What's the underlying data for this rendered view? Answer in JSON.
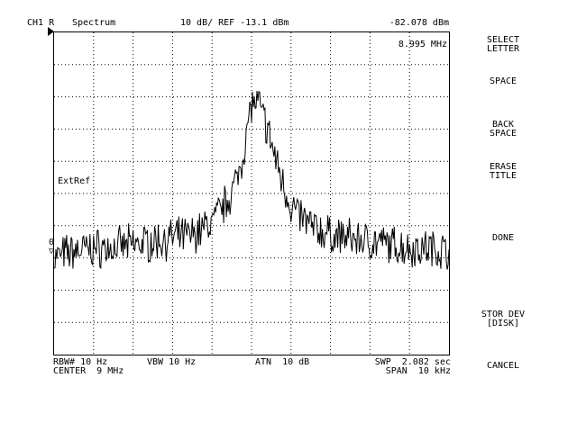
{
  "header": {
    "channel": "CH1 R",
    "mode": "Spectrum",
    "scale_ref": "10 dB/ REF -13.1 dBm",
    "marker_value": "-82.078 dBm"
  },
  "screen": {
    "marker_freq": "8.995 MHz",
    "ext_ref": "ExtRef",
    "level_marker": "0"
  },
  "footer": {
    "rbw": "RBW# 10 Hz",
    "vbw": "VBW 10 Hz",
    "atn": "ATN  10 dB",
    "swp": "SWP  2.082 sec",
    "center": "CENTER  9 MHz",
    "span": "SPAN  10 kHz"
  },
  "softkeys": {
    "select_letter": "SELECT\nLETTER",
    "space": "SPACE",
    "back_space": "BACK\nSPACE",
    "erase_title": "ERASE\nTITLE",
    "done": "DONE",
    "stor_dev": "STOR DEV\n[DISK]",
    "cancel": "CANCEL"
  },
  "chart_data": {
    "type": "line",
    "xlabel": "",
    "ylabel": "",
    "x_range_mhz": [
      8.995,
      9.005
    ],
    "ylim_dbm": [
      -113.1,
      -13.1
    ],
    "grid": true,
    "series": [
      {
        "x_mhz": [
          8.995,
          8.9955,
          8.996,
          8.9965,
          8.997,
          8.9975,
          8.998,
          8.9985,
          8.999,
          8.9993,
          8.9996,
          8.9998,
          9.0,
          9.0002,
          9.0004,
          9.0006,
          9.0008,
          9.001,
          9.0013,
          9.0016,
          9.002,
          9.0025,
          9.003,
          9.0035,
          9.004,
          9.0045,
          9.005
        ],
        "y_dbm": [
          -83,
          -81,
          -80,
          -80,
          -79,
          -78,
          -77,
          -76,
          -72,
          -67,
          -60,
          -50,
          -35,
          -36,
          -43,
          -52,
          -60,
          -67,
          -71,
          -74,
          -76,
          -77,
          -78,
          -79,
          -80,
          -80,
          -81
        ]
      }
    ]
  }
}
